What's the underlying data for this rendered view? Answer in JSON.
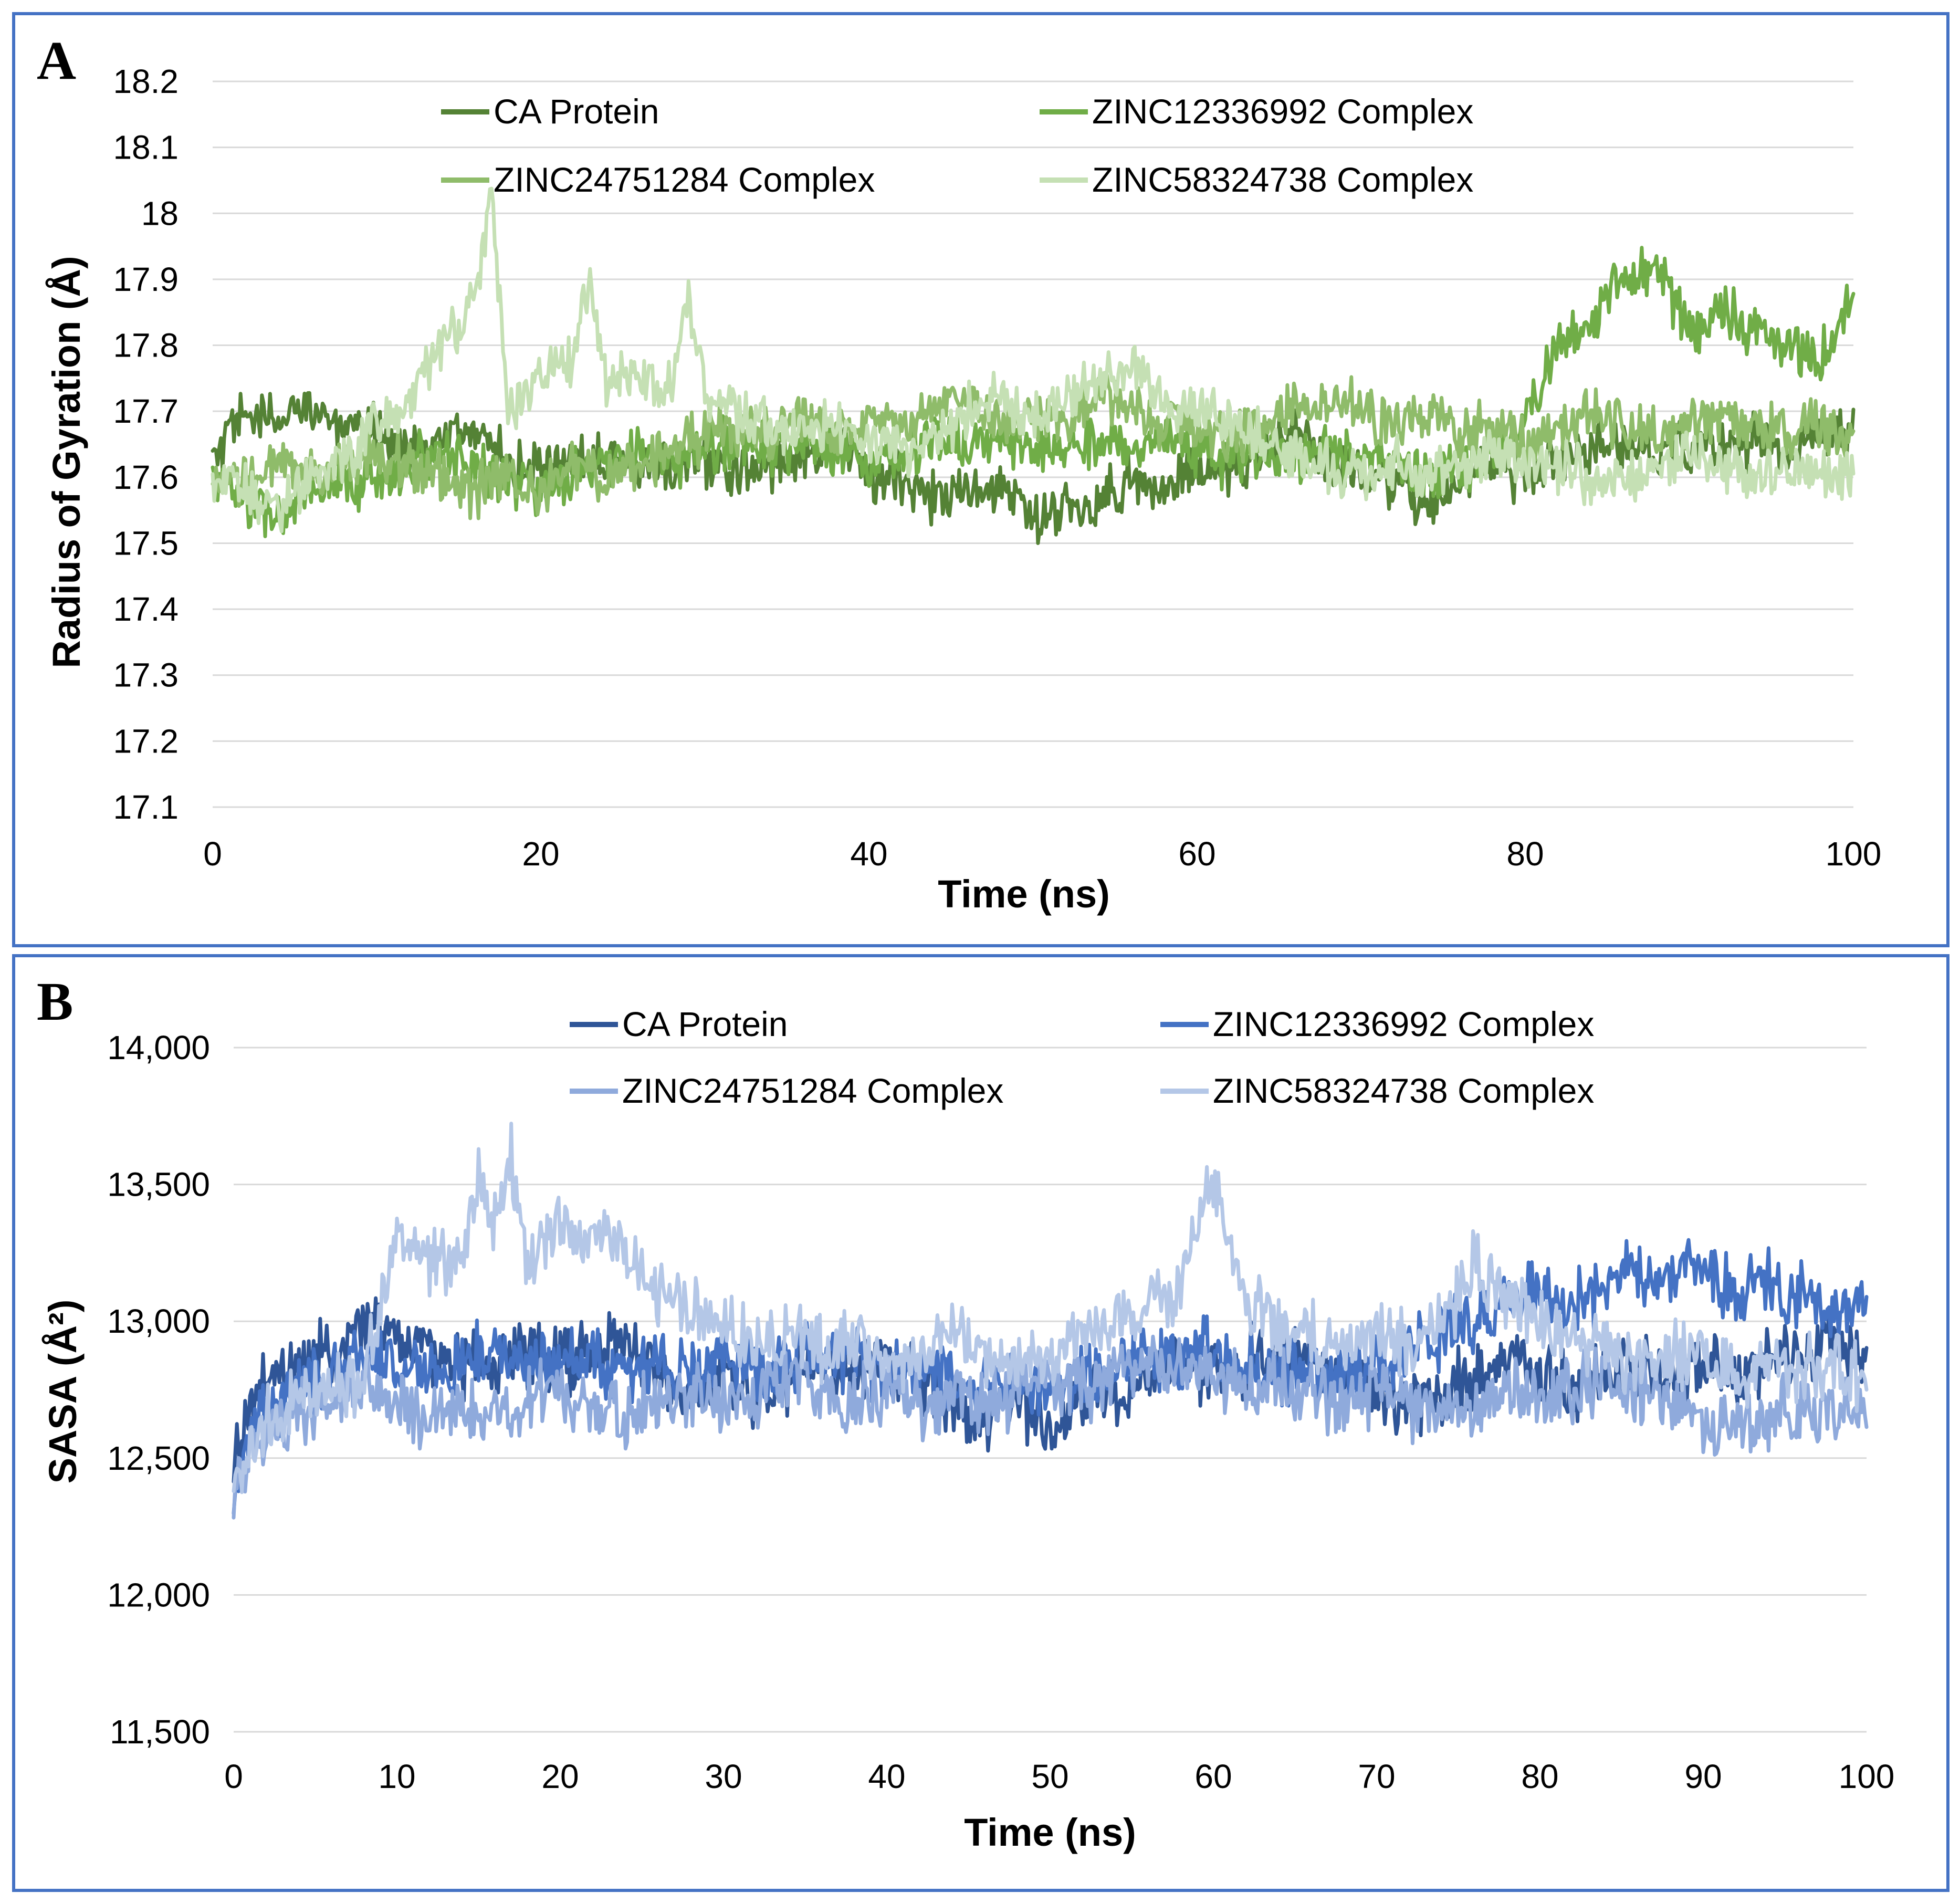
{
  "chart_data": [
    {
      "panel": "A",
      "type": "line",
      "title": "",
      "xlabel": "Time (ns)",
      "ylabel": "Radius of Gyration (Å)",
      "xlim": [
        0,
        100
      ],
      "ylim": [
        17.1,
        18.2
      ],
      "xticks": [
        0,
        20,
        40,
        60,
        80,
        100
      ],
      "xtick_labels": [
        "0",
        "20",
        "40",
        "60",
        "80",
        "100"
      ],
      "yticks": [
        17.1,
        17.2,
        17.3,
        17.4,
        17.5,
        17.6,
        17.7,
        17.8,
        17.9,
        18.0,
        18.1,
        18.2
      ],
      "ytick_labels": [
        "17.1",
        "17.2",
        "17.3",
        "17.4",
        "17.5",
        "17.6",
        "17.7",
        "17.8",
        "17.9",
        "18",
        "18.1",
        "18.2"
      ],
      "grid": true,
      "legend_position": "top",
      "series": [
        {
          "name": "CA Protein",
          "color": "#548235",
          "x": [
            0,
            2,
            4,
            6,
            8,
            10,
            12,
            14,
            16,
            18,
            20,
            22,
            24,
            26,
            28,
            30,
            32,
            34,
            36,
            38,
            40,
            42,
            44,
            46,
            48,
            50,
            52,
            54,
            56,
            58,
            60,
            62,
            64,
            66,
            68,
            70,
            72,
            74,
            76,
            78,
            80,
            82,
            84,
            86,
            88,
            90,
            92,
            94,
            96,
            98,
            100
          ],
          "values": [
            17.62,
            17.7,
            17.68,
            17.72,
            17.66,
            17.68,
            17.64,
            17.65,
            17.68,
            17.62,
            17.6,
            17.63,
            17.64,
            17.62,
            17.61,
            17.63,
            17.6,
            17.62,
            17.64,
            17.66,
            17.6,
            17.6,
            17.57,
            17.58,
            17.58,
            17.54,
            17.55,
            17.56,
            17.6,
            17.58,
            17.62,
            17.6,
            17.64,
            17.67,
            17.62,
            17.6,
            17.58,
            17.56,
            17.6,
            17.62,
            17.6,
            17.62,
            17.64,
            17.65,
            17.63,
            17.65,
            17.64,
            17.66,
            17.64,
            17.66,
            17.66
          ]
        },
        {
          "name": "ZINC12336992 Complex",
          "color": "#70ad47",
          "x": [
            0,
            2,
            4,
            6,
            8,
            10,
            12,
            14,
            16,
            18,
            20,
            22,
            24,
            26,
            28,
            30,
            32,
            34,
            36,
            38,
            40,
            42,
            44,
            46,
            48,
            50,
            52,
            54,
            56,
            58,
            60,
            62,
            64,
            66,
            68,
            70,
            72,
            74,
            76,
            78,
            80,
            82,
            84,
            86,
            88,
            90,
            92,
            94,
            96,
            98,
            100
          ],
          "values": [
            17.6,
            17.56,
            17.54,
            17.57,
            17.58,
            17.6,
            17.62,
            17.64,
            17.62,
            17.6,
            17.58,
            17.6,
            17.62,
            17.64,
            17.62,
            17.64,
            17.66,
            17.64,
            17.66,
            17.64,
            17.62,
            17.64,
            17.66,
            17.64,
            17.66,
            17.64,
            17.65,
            17.66,
            17.64,
            17.66,
            17.64,
            17.62,
            17.64,
            17.63,
            17.64,
            17.62,
            17.62,
            17.6,
            17.62,
            17.64,
            17.68,
            17.8,
            17.84,
            17.9,
            17.92,
            17.82,
            17.86,
            17.82,
            17.8,
            17.78,
            17.86
          ]
        },
        {
          "name": "ZINC24751284 Complex",
          "color": "#8fbc6a",
          "x": [
            0,
            2,
            4,
            6,
            8,
            10,
            12,
            14,
            16,
            18,
            20,
            22,
            24,
            26,
            28,
            30,
            32,
            34,
            36,
            38,
            40,
            42,
            44,
            46,
            48,
            50,
            52,
            54,
            56,
            58,
            60,
            62,
            64,
            66,
            68,
            70,
            72,
            74,
            76,
            78,
            80,
            82,
            84,
            86,
            88,
            90,
            92,
            94,
            96,
            98,
            100
          ],
          "values": [
            17.58,
            17.6,
            17.62,
            17.6,
            17.62,
            17.64,
            17.62,
            17.6,
            17.58,
            17.6,
            17.58,
            17.62,
            17.6,
            17.62,
            17.64,
            17.66,
            17.68,
            17.66,
            17.7,
            17.66,
            17.68,
            17.68,
            17.7,
            17.72,
            17.68,
            17.7,
            17.68,
            17.72,
            17.7,
            17.68,
            17.68,
            17.66,
            17.68,
            17.7,
            17.72,
            17.7,
            17.68,
            17.7,
            17.66,
            17.68,
            17.66,
            17.68,
            17.7,
            17.68,
            17.66,
            17.68,
            17.7,
            17.68,
            17.66,
            17.68,
            17.64
          ]
        },
        {
          "name": "ZINC58324738 Complex",
          "color": "#c5e0b4",
          "x": [
            0,
            2,
            4,
            6,
            8,
            10,
            12,
            14,
            16,
            17,
            18,
            20,
            22,
            23,
            24,
            26,
            28,
            29,
            30,
            32,
            34,
            36,
            38,
            40,
            42,
            44,
            46,
            48,
            50,
            52,
            54,
            56,
            58,
            60,
            62,
            64,
            66,
            68,
            70,
            72,
            74,
            76,
            78,
            80,
            82,
            84,
            86,
            88,
            90,
            92,
            94,
            96,
            98,
            100
          ],
          "values": [
            17.6,
            17.58,
            17.56,
            17.6,
            17.62,
            17.68,
            17.72,
            17.8,
            17.86,
            18.05,
            17.7,
            17.76,
            17.78,
            17.9,
            17.74,
            17.76,
            17.74,
            17.88,
            17.72,
            17.7,
            17.68,
            17.66,
            17.68,
            17.66,
            17.64,
            17.66,
            17.7,
            17.72,
            17.7,
            17.72,
            17.74,
            17.76,
            17.72,
            17.7,
            17.68,
            17.66,
            17.64,
            17.62,
            17.6,
            17.62,
            17.6,
            17.62,
            17.64,
            17.62,
            17.62,
            17.6,
            17.6,
            17.62,
            17.64,
            17.62,
            17.6,
            17.6,
            17.62,
            17.6
          ]
        }
      ]
    },
    {
      "panel": "B",
      "type": "line",
      "title": "",
      "xlabel": "Time (ns)",
      "ylabel": "SASA (Å²)",
      "xlim": [
        0,
        100
      ],
      "ylim": [
        11500,
        14000
      ],
      "xticks": [
        0,
        10,
        20,
        30,
        40,
        50,
        60,
        70,
        80,
        90,
        100
      ],
      "xtick_labels": [
        "0",
        "10",
        "20",
        "30",
        "40",
        "50",
        "60",
        "70",
        "80",
        "90",
        "100"
      ],
      "yticks": [
        11500,
        12000,
        12500,
        13000,
        13500,
        14000
      ],
      "ytick_labels": [
        "11,500",
        "12,000",
        "12,500",
        "13,000",
        "13,500",
        "14,000"
      ],
      "grid": true,
      "legend_position": "top",
      "series": [
        {
          "name": "CA Protein",
          "color": "#2f5597",
          "x": [
            0,
            2,
            4,
            6,
            8,
            10,
            12,
            14,
            16,
            18,
            20,
            22,
            24,
            26,
            28,
            30,
            32,
            34,
            36,
            38,
            40,
            42,
            44,
            46,
            48,
            50,
            52,
            54,
            56,
            58,
            60,
            62,
            64,
            66,
            68,
            70,
            72,
            74,
            76,
            78,
            80,
            82,
            84,
            86,
            88,
            90,
            92,
            94,
            96,
            98,
            100
          ],
          "values": [
            12500,
            12800,
            12850,
            12900,
            13000,
            12950,
            12900,
            12850,
            12800,
            12900,
            12850,
            12900,
            12950,
            12800,
            12750,
            12800,
            12750,
            12800,
            12850,
            12800,
            12850,
            12800,
            12700,
            12650,
            12700,
            12650,
            12700,
            12750,
            12800,
            12850,
            12800,
            12850,
            12900,
            12850,
            12800,
            12750,
            12700,
            12750,
            12800,
            12850,
            12800,
            12750,
            12800,
            12850,
            12800,
            12850,
            12800,
            12850,
            12900,
            12950,
            12900
          ]
        },
        {
          "name": "ZINC12336992 Complex",
          "color": "#4472c4",
          "x": [
            0,
            2,
            4,
            6,
            8,
            10,
            12,
            14,
            16,
            18,
            20,
            22,
            24,
            26,
            28,
            30,
            32,
            34,
            36,
            38,
            40,
            42,
            44,
            46,
            48,
            50,
            52,
            54,
            56,
            58,
            60,
            62,
            64,
            66,
            68,
            70,
            72,
            74,
            76,
            78,
            80,
            82,
            84,
            86,
            88,
            90,
            92,
            94,
            96,
            98,
            100
          ],
          "values": [
            12400,
            12700,
            12750,
            12800,
            12900,
            12850,
            12800,
            12850,
            12900,
            12850,
            12900,
            12850,
            12800,
            12850,
            12800,
            12850,
            12800,
            12850,
            12900,
            12850,
            12800,
            12850,
            12800,
            12750,
            12800,
            12750,
            12800,
            12850,
            12900,
            12850,
            12900,
            12850,
            12800,
            12850,
            12800,
            12850,
            12900,
            12950,
            13000,
            13050,
            13100,
            13050,
            13100,
            13200,
            13150,
            13200,
            13100,
            13150,
            13100,
            13050,
            13050
          ]
        },
        {
          "name": "ZINC24751284 Complex",
          "color": "#8faadc",
          "x": [
            0,
            2,
            4,
            6,
            8,
            10,
            12,
            14,
            16,
            18,
            20,
            22,
            24,
            26,
            28,
            30,
            32,
            34,
            36,
            38,
            40,
            42,
            44,
            46,
            48,
            50,
            52,
            54,
            56,
            58,
            60,
            62,
            64,
            66,
            68,
            70,
            72,
            74,
            76,
            78,
            80,
            82,
            84,
            86,
            88,
            90,
            92,
            94,
            96,
            98,
            100
          ],
          "values": [
            12400,
            12600,
            12650,
            12700,
            12750,
            12700,
            12650,
            12700,
            12650,
            12700,
            12750,
            12700,
            12650,
            12700,
            12750,
            12700,
            12750,
            12800,
            12750,
            12700,
            12750,
            12700,
            12750,
            12700,
            12750,
            12800,
            12750,
            12800,
            12850,
            12800,
            12800,
            12750,
            12800,
            12750,
            12700,
            12750,
            12700,
            12650,
            12700,
            12750,
            12700,
            12750,
            12800,
            12750,
            12700,
            12650,
            12600,
            12650,
            12700,
            12650,
            12650
          ]
        },
        {
          "name": "ZINC58324738 Complex",
          "color": "#b4c7e7",
          "x": [
            0,
            2,
            4,
            6,
            8,
            10,
            12,
            14,
            15,
            16,
            17,
            18,
            20,
            22,
            24,
            26,
            28,
            30,
            32,
            34,
            36,
            38,
            40,
            42,
            44,
            46,
            48,
            50,
            52,
            54,
            56,
            58,
            60,
            62,
            64,
            66,
            68,
            70,
            72,
            74,
            76,
            78,
            80,
            82,
            84,
            86,
            88,
            90,
            92,
            94,
            96,
            98,
            100
          ],
          "values": [
            12400,
            12650,
            12700,
            12750,
            12800,
            13300,
            13200,
            13250,
            13500,
            13350,
            13600,
            13200,
            13350,
            13300,
            13250,
            13100,
            13050,
            13000,
            12900,
            12950,
            12900,
            12950,
            12850,
            12900,
            12950,
            12850,
            12900,
            12850,
            12950,
            13000,
            13050,
            13100,
            13550,
            13050,
            13000,
            12950,
            12900,
            12950,
            12900,
            13000,
            13200,
            13100,
            13000,
            12950,
            12900,
            12850,
            12900,
            12850,
            12800,
            12850,
            12800,
            12850,
            12750
          ]
        }
      ]
    }
  ]
}
